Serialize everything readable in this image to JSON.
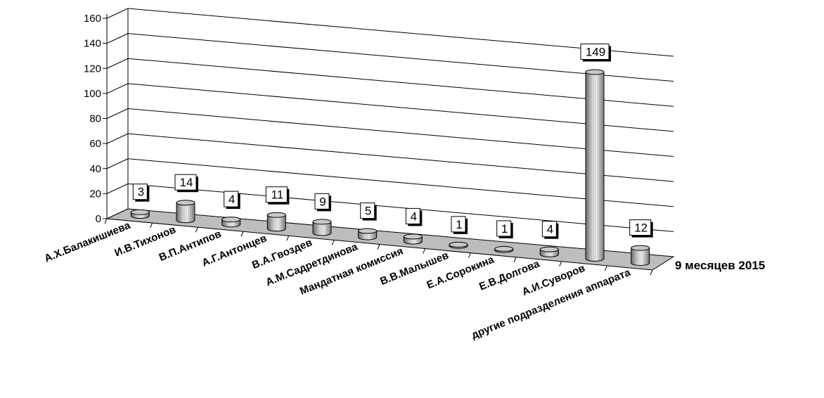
{
  "chart_data": {
    "type": "bar",
    "title": "",
    "xlabel": "",
    "ylabel": "",
    "ylim": [
      0,
      160
    ],
    "yticks": [
      0,
      20,
      40,
      60,
      80,
      100,
      120,
      140,
      160
    ],
    "grid": true,
    "categories": [
      "А.Х.Балакишиева",
      "И.В.Тихонов",
      "В.П.Антипов",
      "А.Г.Антонцев",
      "В.А.Гвоздев",
      "А.М.Садретдинова",
      "Мандатная комиссия",
      "В.В.Малышев",
      "Е.А.Сорокина",
      "Е.В.Долгова",
      "А.И.Суворов",
      "другие подразделения аппарата"
    ],
    "series": [
      {
        "name": "9 месяцев 2015",
        "values": [
          3,
          14,
          4,
          11,
          9,
          5,
          4,
          1,
          1,
          4,
          149,
          12
        ]
      }
    ]
  }
}
